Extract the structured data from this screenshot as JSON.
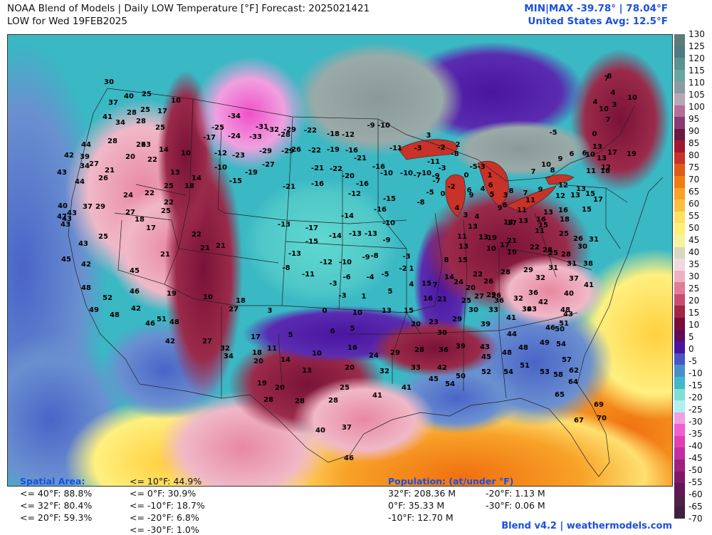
{
  "header": {
    "title": "NOAA Blend of Models | Daily LOW Temperature [°F] Forecast: 2025021421",
    "subtitle": "LOW for Wed 19FEB2025",
    "minmax": "MIN|MAX -39.78° | 78.04°F",
    "us_avg": "United States Avg: 12.5°F"
  },
  "colorbar": {
    "ticks": [
      "130",
      "125",
      "120",
      "115",
      "110",
      "105",
      "100",
      "95",
      "90",
      "85",
      "80",
      "75",
      "70",
      "65",
      "60",
      "55",
      "50",
      "45",
      "40",
      "35",
      "30",
      "25",
      "20",
      "15",
      "10",
      "5",
      "0",
      "-5",
      "-10",
      "-15",
      "-20",
      "-25",
      "-30",
      "-35",
      "-40",
      "-45",
      "-50",
      "-55",
      "-60",
      "-65",
      "-70"
    ],
    "colors": [
      "#5a7c78",
      "#4f7a82",
      "#5a9290",
      "#6aa6a0",
      "#8a9ca2",
      "#b4a8b4",
      "#b46e98",
      "#8a3a72",
      "#6a1a42",
      "#a01830",
      "#c83228",
      "#e05a18",
      "#f07c14",
      "#f8a228",
      "#fcc040",
      "#ffe060",
      "#fff07a",
      "#f4f4a0",
      "#d8d8c0",
      "#f0d8e0",
      "#f0b0c4",
      "#e07c98",
      "#c84c6e",
      "#a02648",
      "#7a0c3a",
      "#600c5a",
      "#4a14a0",
      "#4a54c4",
      "#4a90c8",
      "#40b8c8",
      "#80e0d8",
      "#b0f0f0",
      "#f0a0e0",
      "#f060d0",
      "#e040b0",
      "#c030a0",
      "#a02080",
      "#801868",
      "#601858",
      "#502048",
      "#402040"
    ]
  },
  "icon_notes": {
    "map": "temperature-map",
    "city_values": "temperature-labels"
  },
  "map_labels": [
    [
      "30",
      152,
      113
    ],
    [
      "25",
      205,
      130
    ],
    [
      "10",
      246,
      139
    ],
    [
      "40",
      180,
      133
    ],
    [
      "17",
      227,
      154
    ],
    [
      "37",
      158,
      142
    ],
    [
      "28",
      184,
      156
    ],
    [
      "25",
      203,
      152
    ],
    [
      "41",
      150,
      162
    ],
    [
      "34",
      168,
      170
    ],
    [
      "28",
      197,
      168
    ],
    [
      "25",
      224,
      177
    ],
    [
      "44",
      120,
      201
    ],
    [
      "28",
      157,
      196
    ],
    [
      "26",
      197,
      201
    ],
    [
      "23",
      204,
      201
    ],
    [
      "14",
      229,
      208
    ],
    [
      "10",
      260,
      213
    ],
    [
      "42",
      96,
      216
    ],
    [
      "39",
      118,
      218
    ],
    [
      "20",
      182,
      218
    ],
    [
      "22",
      213,
      222
    ],
    [
      "34",
      118,
      231
    ],
    [
      "27",
      131,
      228
    ],
    [
      "43",
      86,
      240
    ],
    [
      "21",
      153,
      237
    ],
    [
      "13",
      245,
      240
    ],
    [
      "14",
      275,
      248
    ],
    [
      "26",
      144,
      248
    ],
    [
      "44",
      111,
      253
    ],
    [
      "25",
      236,
      259
    ],
    [
      "18",
      265,
      259
    ],
    [
      "24",
      179,
      272
    ],
    [
      "22",
      209,
      269
    ],
    [
      "22",
      236,
      282
    ],
    [
      "40",
      87,
      287
    ],
    [
      "37",
      122,
      288
    ],
    [
      "29",
      140,
      288
    ],
    [
      "27",
      182,
      296
    ],
    [
      "25",
      232,
      294
    ],
    [
      "43",
      100,
      297
    ],
    [
      "43",
      93,
      305
    ],
    [
      "18",
      195,
      306
    ],
    [
      "47",
      86,
      302
    ],
    [
      "43",
      91,
      313
    ],
    [
      "17",
      211,
      318
    ],
    [
      "25",
      144,
      330
    ],
    [
      "22",
      275,
      327
    ],
    [
      "43",
      116,
      340
    ],
    [
      "21",
      287,
      346
    ],
    [
      "21",
      309,
      343
    ],
    [
      "21",
      231,
      355
    ],
    [
      "45",
      92,
      362
    ],
    [
      "42",
      120,
      369
    ],
    [
      "45",
      188,
      378
    ],
    [
      "48",
      120,
      402
    ],
    [
      "52",
      150,
      416
    ],
    [
      "46",
      188,
      407
    ],
    [
      "19",
      240,
      410
    ],
    [
      "10",
      291,
      415
    ],
    [
      "18",
      337,
      420
    ],
    [
      "49",
      131,
      433
    ],
    [
      "48",
      160,
      440
    ],
    [
      "42",
      190,
      431
    ],
    [
      "51",
      226,
      446
    ],
    [
      "48",
      244,
      450
    ],
    [
      "46",
      210,
      452
    ],
    [
      "27",
      327,
      432
    ],
    [
      "42",
      238,
      477
    ],
    [
      "27",
      290,
      477
    ],
    [
      "32",
      315,
      487
    ],
    [
      "34",
      320,
      498
    ],
    [
      "18",
      360,
      493
    ],
    [
      "17",
      358,
      471
    ],
    [
      "11",
      381,
      487
    ],
    [
      "14",
      400,
      503
    ],
    [
      "20",
      362,
      505
    ],
    [
      "10",
      444,
      494
    ],
    [
      "13",
      430,
      518
    ],
    [
      "19",
      367,
      536
    ],
    [
      "20",
      392,
      542
    ],
    [
      "28",
      376,
      559
    ],
    [
      "28",
      420,
      561
    ],
    [
      "25",
      483,
      542
    ],
    [
      "28",
      467,
      560
    ],
    [
      "41",
      529,
      553
    ],
    [
      "41",
      570,
      542
    ],
    [
      "32",
      539,
      519
    ],
    [
      "20",
      490,
      514
    ],
    [
      "24",
      524,
      497
    ],
    [
      "16",
      494,
      486
    ],
    [
      "29",
      554,
      493
    ],
    [
      "28",
      588,
      489
    ],
    [
      "36",
      622,
      489
    ],
    [
      "39",
      646,
      484
    ],
    [
      "43",
      680,
      485
    ],
    [
      "45",
      682,
      499
    ],
    [
      "48",
      711,
      493
    ],
    [
      "48",
      734,
      486
    ],
    [
      "49",
      764,
      479
    ],
    [
      "54",
      787,
      481
    ],
    [
      "57",
      795,
      503
    ],
    [
      "51",
      736,
      511
    ],
    [
      "53",
      764,
      520
    ],
    [
      "58",
      783,
      524
    ],
    [
      "62",
      805,
      518
    ],
    [
      "64",
      804,
      534
    ],
    [
      "65",
      785,
      552
    ],
    [
      "67",
      812,
      588
    ],
    [
      "69",
      840,
      566
    ],
    [
      "70",
      844,
      585
    ],
    [
      "50",
      646,
      526
    ],
    [
      "52",
      682,
      520
    ],
    [
      "54",
      713,
      520
    ],
    [
      "54",
      631,
      537
    ],
    [
      "45",
      608,
      530
    ],
    [
      "42",
      620,
      514
    ],
    [
      "33",
      583,
      514
    ],
    [
      "40",
      449,
      602
    ],
    [
      "37",
      486,
      598
    ],
    [
      "46",
      489,
      641
    ],
    [
      "-34",
      328,
      161
    ],
    [
      "-31",
      367,
      176
    ],
    [
      "-32",
      382,
      180
    ],
    [
      "-29",
      406,
      180
    ],
    [
      "-22",
      435,
      181
    ],
    [
      "-18",
      467,
      186
    ],
    [
      "-12",
      488,
      187
    ],
    [
      "-9",
      520,
      174
    ],
    [
      "-10",
      538,
      174
    ],
    [
      "-25",
      305,
      177
    ],
    [
      "-17",
      293,
      191
    ],
    [
      "-24",
      328,
      189
    ],
    [
      "-33",
      358,
      190
    ],
    [
      "-28",
      398,
      187
    ],
    [
      "-29",
      403,
      210
    ],
    [
      "-26",
      413,
      208
    ],
    [
      "-22",
      441,
      209
    ],
    [
      "-19",
      467,
      208
    ],
    [
      "-16",
      493,
      209
    ],
    [
      "-21",
      505,
      220
    ],
    [
      "-11",
      555,
      206
    ],
    [
      "-12",
      309,
      213
    ],
    [
      "-23",
      334,
      216
    ],
    [
      "-29",
      372,
      210
    ],
    [
      "-27",
      376,
      229
    ],
    [
      "-10",
      309,
      233
    ],
    [
      "-19",
      352,
      240
    ],
    [
      "-21",
      445,
      234
    ],
    [
      "-22",
      471,
      235
    ],
    [
      "-20",
      488,
      245
    ],
    [
      "-16",
      531,
      232
    ],
    [
      "-10",
      542,
      241
    ],
    [
      "-15",
      330,
      252
    ],
    [
      "-21",
      405,
      260
    ],
    [
      "-16",
      445,
      256
    ],
    [
      "-16",
      508,
      256
    ],
    [
      "-10",
      570,
      241
    ],
    [
      "-12",
      497,
      270
    ],
    [
      "-15",
      546,
      277
    ],
    [
      "-16",
      533,
      292
    ],
    [
      "-10",
      545,
      311
    ],
    [
      "-17",
      437,
      318
    ],
    [
      "-13",
      398,
      313
    ],
    [
      "-14",
      487,
      301
    ],
    [
      "-13",
      498,
      326
    ],
    [
      "-13",
      520,
      326
    ],
    [
      "-9",
      542,
      335
    ],
    [
      "-13",
      413,
      354
    ],
    [
      "-12",
      457,
      366
    ],
    [
      "-10",
      484,
      366
    ],
    [
      "-14",
      470,
      329
    ],
    [
      "-15",
      437,
      337
    ],
    [
      "-8",
      401,
      374
    ],
    [
      "-11",
      432,
      383
    ],
    [
      "-3",
      467,
      396
    ],
    [
      "-6",
      486,
      387
    ],
    [
      "-4",
      519,
      387
    ],
    [
      "-5",
      540,
      383
    ],
    [
      "-3",
      570,
      358
    ],
    [
      "-9",
      513,
      359
    ],
    [
      "-8",
      525,
      357
    ],
    [
      "-2",
      565,
      375
    ],
    [
      "1",
      577,
      375
    ],
    [
      "4",
      577,
      397
    ],
    [
      "5",
      547,
      407
    ],
    [
      "1",
      510,
      414
    ],
    [
      "-3",
      480,
      413
    ],
    [
      "0",
      455,
      434
    ],
    [
      "3",
      378,
      434
    ],
    [
      "5",
      407,
      468
    ],
    [
      "6",
      466,
      463
    ],
    [
      "5",
      494,
      459
    ],
    [
      "10",
      501,
      437
    ],
    [
      "13",
      542,
      434
    ],
    [
      "15",
      573,
      434
    ],
    [
      "20",
      583,
      453
    ],
    [
      "16",
      600,
      417
    ],
    [
      "15",
      598,
      396
    ],
    [
      "14",
      630,
      387
    ],
    [
      "22",
      670,
      383
    ],
    [
      "26",
      685,
      393
    ],
    [
      "28",
      709,
      380
    ],
    [
      "29",
      741,
      377
    ],
    [
      "31",
      776,
      374
    ],
    [
      "31",
      802,
      368
    ],
    [
      "32",
      758,
      388
    ],
    [
      "36",
      748,
      409
    ],
    [
      "37",
      805,
      389
    ],
    [
      "38",
      825,
      368
    ],
    [
      "40",
      798,
      410
    ],
    [
      "41",
      826,
      398
    ],
    [
      "42",
      762,
      422
    ],
    [
      "43",
      797,
      439
    ],
    [
      "46",
      772,
      458
    ],
    [
      "48",
      793,
      433
    ],
    [
      "50",
      785,
      460
    ],
    [
      "51",
      791,
      452
    ],
    [
      "41",
      717,
      444
    ],
    [
      "39",
      739,
      432
    ],
    [
      "43",
      746,
      432
    ],
    [
      "44",
      718,
      467
    ],
    [
      "39",
      681,
      453
    ],
    [
      "29",
      641,
      446
    ],
    [
      "30",
      664,
      433
    ],
    [
      "33",
      692,
      433
    ],
    [
      "30",
      620,
      465
    ],
    [
      "23",
      608,
      450
    ],
    [
      "21",
      620,
      418
    ],
    [
      "25",
      654,
      420
    ],
    [
      "27",
      672,
      414
    ],
    [
      "26",
      696,
      413
    ],
    [
      "29",
      689,
      412
    ],
    [
      "36",
      700,
      420
    ],
    [
      "32",
      727,
      417
    ],
    [
      "20",
      660,
      402
    ],
    [
      "24",
      643,
      394
    ],
    [
      "7",
      610,
      398
    ],
    [
      "8",
      626,
      363
    ],
    [
      "15",
      649,
      363
    ],
    [
      "17",
      708,
      342
    ],
    [
      "21",
      718,
      336
    ],
    [
      "19",
      690,
      332
    ],
    [
      "13",
      678,
      331
    ],
    [
      "11",
      648,
      330
    ],
    [
      "13",
      663,
      316
    ],
    [
      "13",
      650,
      344
    ],
    [
      "10",
      689,
      347
    ],
    [
      "14",
      713,
      310
    ],
    [
      "13",
      734,
      308
    ],
    [
      "16",
      759,
      306
    ],
    [
      "11",
      757,
      322
    ],
    [
      "22",
      750,
      345
    ],
    [
      "28",
      768,
      349
    ],
    [
      "25",
      791,
      326
    ],
    [
      "26",
      811,
      333
    ],
    [
      "30",
      817,
      344
    ],
    [
      "31",
      833,
      334
    ],
    [
      "25",
      776,
      353
    ],
    [
      "28",
      794,
      355
    ],
    [
      "19",
      718,
      352
    ],
    [
      "17",
      718,
      311
    ],
    [
      "15",
      762,
      314
    ],
    [
      "13",
      769,
      296
    ],
    [
      "16",
      790,
      293
    ],
    [
      "18",
      792,
      306
    ],
    [
      "12",
      790,
      258
    ],
    [
      "13",
      815,
      263
    ],
    [
      "15",
      828,
      270
    ],
    [
      "17",
      839,
      278
    ],
    [
      "9",
      758,
      264
    ],
    [
      "12",
      786,
      273
    ],
    [
      "13",
      807,
      272
    ],
    [
      "15",
      823,
      292
    ],
    [
      "7",
      748,
      239
    ],
    [
      "10",
      766,
      229
    ],
    [
      "8",
      775,
      237
    ],
    [
      "9",
      786,
      221
    ],
    [
      "11",
      829,
      238
    ],
    [
      "6",
      802,
      214
    ],
    [
      "6",
      820,
      213
    ],
    [
      "10",
      828,
      215
    ],
    [
      "13",
      838,
      204
    ],
    [
      "13",
      844,
      220
    ],
    [
      "16",
      849,
      238
    ],
    [
      "17",
      859,
      212
    ],
    [
      "19",
      886,
      214
    ],
    [
      "12",
      850,
      233
    ],
    [
      "9",
      661,
      272
    ],
    [
      "6",
      658,
      265
    ],
    [
      "4",
      677,
      263
    ],
    [
      "5",
      690,
      271
    ],
    [
      "6",
      688,
      258
    ],
    [
      "1",
      687,
      244
    ],
    [
      "-3",
      675,
      232
    ],
    [
      "-5",
      664,
      232
    ],
    [
      "4",
      669,
      302
    ],
    [
      "3",
      653,
      300
    ],
    [
      "9",
      701,
      290
    ],
    [
      "3",
      709,
      272
    ],
    [
      "6",
      708,
      286
    ],
    [
      "8",
      717,
      266
    ],
    [
      "11",
      732,
      293
    ],
    [
      "11",
      744,
      279
    ],
    [
      "7",
      737,
      269
    ],
    [
      "4",
      641,
      290
    ],
    [
      "-5",
      603,
      268
    ],
    [
      "0",
      621,
      270
    ],
    [
      "-8",
      590,
      282
    ],
    [
      "-9",
      611,
      245
    ],
    [
      "-10",
      596,
      241
    ],
    [
      "-11",
      608,
      225
    ],
    [
      "-7",
      612,
      252
    ],
    [
      "-3",
      620,
      234
    ],
    [
      "-2",
      633,
      260
    ],
    [
      "0",
      654,
      244
    ],
    [
      "-7",
      585,
      244
    ],
    [
      "-3",
      586,
      206
    ],
    [
      "3",
      601,
      188
    ],
    [
      "-2",
      619,
      205
    ],
    [
      "2",
      642,
      201
    ],
    [
      "-8",
      638,
      214
    ],
    [
      "-5",
      776,
      184
    ],
    [
      "0",
      834,
      186
    ],
    [
      "7",
      853,
      166
    ],
    [
      "4",
      860,
      128
    ],
    [
      "3",
      862,
      145
    ],
    [
      "10",
      887,
      135
    ],
    [
      "7",
      851,
      108
    ],
    [
      "8",
      855,
      105
    ],
    [
      "4",
      835,
      141
    ],
    [
      "10",
      847,
      151
    ]
  ],
  "stats": {
    "spatial_heading": "Spatial Area:",
    "spatial": [
      "<= 40°F: 88.8%",
      "<= 32°F: 80.4%",
      "<= 20°F: 59.3%"
    ],
    "spatial2": [
      "<= 10°F: 44.9%",
      "<= 0°F: 30.9%",
      "<= -10°F: 18.7%",
      "<= -20°F: 6.8%",
      "<= -30°F: 1.0%"
    ],
    "pop_heading": "Population: (at/under °F)",
    "pop_left": [
      "32°F: 208.36 M",
      "0°F: 35.33 M",
      "-10°F: 12.70 M"
    ],
    "pop_right": [
      "-20°F: 1.13 M",
      "-30°F: 0.06 M"
    ]
  },
  "footer": "Blend v4.2 | weathermodels.com"
}
